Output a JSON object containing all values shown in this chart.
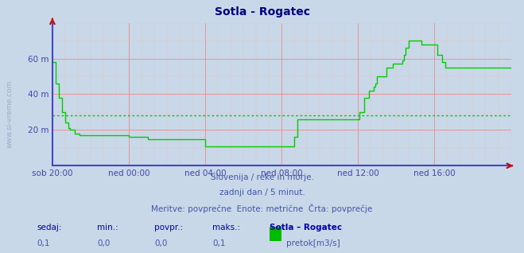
{
  "title": "Sotla - Rogatec",
  "title_color": "#000080",
  "bg_color": "#c8d8e8",
  "plot_bg_color": "#c8d8e8",
  "line_color": "#00cc00",
  "avg_line_color": "#00cc00",
  "avg_value": 28,
  "ylim": [
    0,
    80
  ],
  "yticks": [
    20,
    40,
    60
  ],
  "ytick_labels": [
    "20 m",
    "40 m",
    "60 m"
  ],
  "tick_color": "#4444aa",
  "grid_color_major": "#ee8888",
  "grid_color_minor": "#e8c0c0",
  "spine_bottom_color": "#4444cc",
  "spine_left_color": "#4444cc",
  "x_labels": [
    "sob 20:00",
    "ned 00:00",
    "ned 04:00",
    "ned 08:00",
    "ned 12:00",
    "ned 16:00"
  ],
  "x_positions": [
    0,
    48,
    96,
    144,
    192,
    240
  ],
  "total_points": 288,
  "subtitle1": "Slovenija / reke in morje.",
  "subtitle2": "zadnji dan / 5 minut.",
  "subtitle3": "Meritve: povprečne  Enote: metrične  Črta: povprečje",
  "legend_label1": "sedaj:",
  "legend_label2": "min.:",
  "legend_label3": "povpr.:",
  "legend_label4": "maks.:",
  "legend_label5": "Sotla – Rogatec",
  "legend_val1": "0,1",
  "legend_val2": "0,0",
  "legend_val3": "0,0",
  "legend_val4": "0,1",
  "legend_series": "pretok[m3/s]",
  "series_color": "#00bb00",
  "y_data": [
    58,
    58,
    46,
    46,
    38,
    38,
    30,
    30,
    24,
    24,
    21,
    20,
    20,
    20,
    18,
    18,
    18,
    17,
    17,
    17,
    17,
    17,
    17,
    17,
    17,
    17,
    17,
    17,
    17,
    17,
    17,
    17,
    17,
    17,
    17,
    17,
    17,
    17,
    17,
    17,
    17,
    17,
    17,
    17,
    17,
    17,
    17,
    17,
    16,
    16,
    16,
    16,
    16,
    16,
    16,
    16,
    16,
    16,
    16,
    16,
    15,
    15,
    15,
    15,
    15,
    15,
    15,
    15,
    15,
    15,
    15,
    15,
    15,
    15,
    15,
    15,
    15,
    15,
    15,
    15,
    15,
    15,
    15,
    15,
    15,
    15,
    15,
    15,
    15,
    15,
    15,
    15,
    15,
    15,
    15,
    15,
    11,
    11,
    11,
    11,
    11,
    11,
    11,
    11,
    11,
    11,
    11,
    11,
    11,
    11,
    11,
    11,
    11,
    11,
    11,
    11,
    11,
    11,
    11,
    11,
    11,
    11,
    11,
    11,
    11,
    11,
    11,
    11,
    11,
    11,
    11,
    11,
    11,
    11,
    11,
    11,
    11,
    11,
    11,
    11,
    11,
    11,
    11,
    11,
    11,
    11,
    11,
    11,
    11,
    11,
    11,
    11,
    16,
    16,
    26,
    26,
    26,
    26,
    26,
    26,
    26,
    26,
    26,
    26,
    26,
    26,
    26,
    26,
    26,
    26,
    26,
    26,
    26,
    26,
    26,
    26,
    26,
    26,
    26,
    26,
    26,
    26,
    26,
    26,
    26,
    26,
    26,
    26,
    26,
    26,
    26,
    26,
    26,
    30,
    30,
    30,
    38,
    38,
    38,
    42,
    42,
    42,
    44,
    46,
    50,
    50,
    50,
    50,
    50,
    50,
    55,
    55,
    55,
    55,
    57,
    57,
    57,
    57,
    57,
    57,
    59,
    62,
    66,
    66,
    70,
    70,
    70,
    70,
    70,
    70,
    70,
    70,
    68,
    68,
    68,
    68,
    68,
    68,
    68,
    68,
    68,
    68,
    62,
    62,
    62,
    58,
    58,
    55,
    55,
    55,
    55,
    55,
    55,
    55,
    55,
    55,
    55,
    55,
    55,
    55,
    55,
    55,
    55,
    55,
    55,
    55,
    55,
    55,
    55,
    55,
    55,
    55,
    55,
    55,
    55,
    55,
    55,
    55,
    55,
    55,
    55,
    55,
    55,
    55,
    55,
    55,
    55,
    55,
    55,
    55
  ]
}
